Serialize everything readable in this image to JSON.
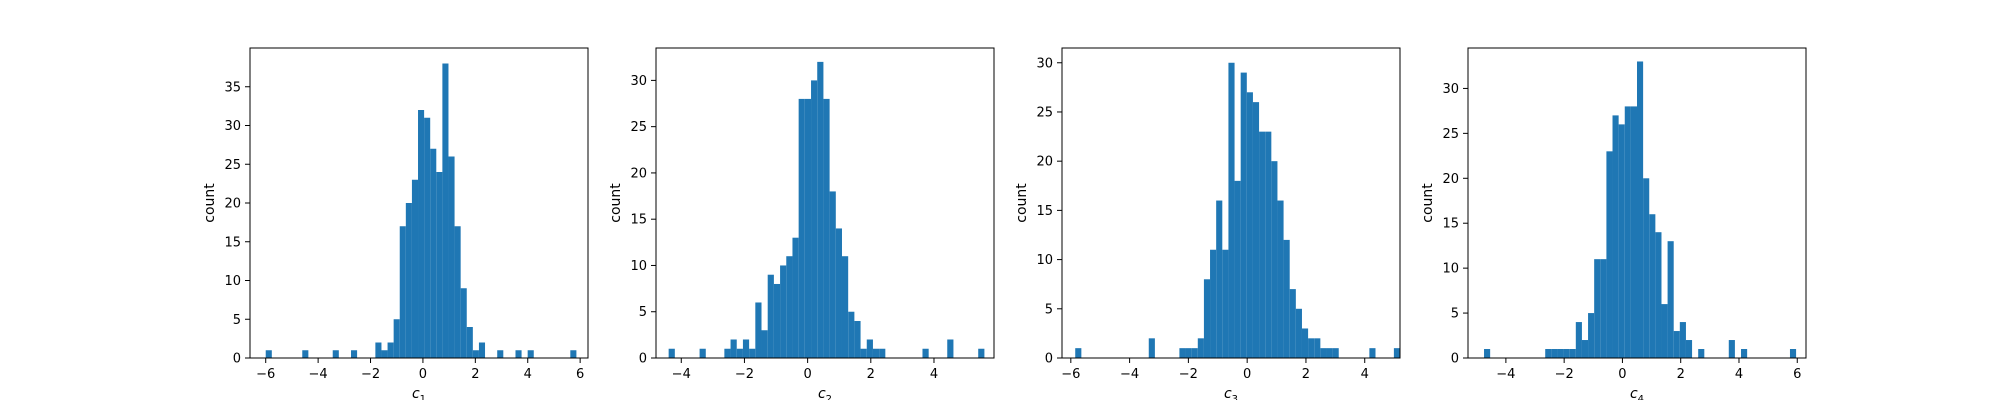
{
  "figure": {
    "bar_color": "#1f77b4",
    "axes_color": "#000000",
    "background": "#ffffff"
  },
  "chart_data": [
    {
      "type": "bar",
      "subtype": "histogram",
      "xlabel": "c",
      "xlabel_sub": "1",
      "ylabel": "count",
      "xlim": [
        -6.6,
        6.3
      ],
      "ylim": [
        0,
        40
      ],
      "xticks": [
        -6,
        -4,
        -2,
        0,
        2,
        4,
        6
      ],
      "xtick_labels": [
        "−6",
        "−4",
        "−2",
        "0",
        "2",
        "4",
        "6"
      ],
      "yticks": [
        0,
        5,
        10,
        15,
        20,
        25,
        30,
        35
      ],
      "ytick_labels": [
        "0",
        "5",
        "10",
        "15",
        "20",
        "25",
        "30",
        "35"
      ],
      "bin_start": -6.0,
      "bin_width": 0.2325,
      "counts": [
        1,
        0,
        0,
        0,
        0,
        0,
        1,
        0,
        0,
        0,
        0,
        1,
        0,
        0,
        1,
        0,
        0,
        0,
        2,
        1,
        2,
        5,
        17,
        20,
        23,
        32,
        31,
        27,
        24,
        38,
        26,
        17,
        9,
        4,
        1,
        2,
        0,
        0,
        1,
        0,
        0,
        1,
        0,
        1,
        0,
        0,
        0,
        0,
        0,
        0,
        1
      ]
    },
    {
      "type": "bar",
      "subtype": "histogram",
      "xlabel": "c",
      "xlabel_sub": "2",
      "ylabel": "count",
      "xlim": [
        -4.8,
        5.9
      ],
      "ylim": [
        0,
        33.5
      ],
      "xticks": [
        -4,
        -2,
        0,
        2,
        4
      ],
      "xtick_labels": [
        "−4",
        "−2",
        "0",
        "2",
        "4"
      ],
      "yticks": [
        0,
        5,
        10,
        15,
        20,
        25,
        30
      ],
      "ytick_labels": [
        "0",
        "5",
        "10",
        "15",
        "20",
        "25",
        "30"
      ],
      "bin_start": -4.4,
      "bin_width": 0.196,
      "counts": [
        1,
        0,
        0,
        0,
        0,
        1,
        0,
        0,
        0,
        1,
        2,
        1,
        2,
        1,
        6,
        3,
        9,
        8,
        10,
        11,
        13,
        28,
        28,
        30,
        32,
        28,
        18,
        14,
        11,
        5,
        4,
        1,
        2,
        1,
        1,
        0,
        0,
        0,
        0,
        0,
        0,
        1,
        0,
        0,
        0,
        2,
        0,
        0,
        0,
        0,
        1
      ]
    },
    {
      "type": "bar",
      "subtype": "histogram",
      "xlabel": "c",
      "xlabel_sub": "3",
      "ylabel": "count",
      "xlim": [
        -6.3,
        5.2
      ],
      "ylim": [
        0,
        31.5
      ],
      "xticks": [
        -6,
        -4,
        -2,
        0,
        2,
        4
      ],
      "xtick_labels": [
        "−6",
        "−4",
        "−2",
        "0",
        "2",
        "4"
      ],
      "yticks": [
        0,
        5,
        10,
        15,
        20,
        25,
        30
      ],
      "ytick_labels": [
        "0",
        "5",
        "10",
        "15",
        "20",
        "25",
        "30"
      ],
      "bin_start": -5.85,
      "bin_width": 0.2085,
      "counts": [
        1,
        0,
        0,
        0,
        0,
        0,
        0,
        0,
        0,
        0,
        0,
        0,
        2,
        0,
        0,
        0,
        0,
        1,
        1,
        1,
        2,
        8,
        11,
        16,
        11,
        30,
        18,
        29,
        27,
        26,
        23,
        23,
        20,
        16,
        12,
        7,
        5,
        3,
        2,
        2,
        1,
        1,
        1,
        0,
        0,
        0,
        0,
        0,
        1,
        0,
        0,
        0,
        1
      ]
    },
    {
      "type": "bar",
      "subtype": "histogram",
      "xlabel": "c",
      "xlabel_sub": "4",
      "ylabel": "count",
      "xlim": [
        -5.3,
        6.3
      ],
      "ylim": [
        0,
        34.5
      ],
      "xticks": [
        -4,
        -2,
        0,
        2,
        4,
        6
      ],
      "xtick_labels": [
        "−4",
        "−2",
        "0",
        "2",
        "4",
        "6"
      ],
      "yticks": [
        0,
        5,
        10,
        15,
        20,
        25,
        30
      ],
      "ytick_labels": [
        "0",
        "5",
        "10",
        "15",
        "20",
        "25",
        "30"
      ],
      "bin_start": -4.75,
      "bin_width": 0.21,
      "counts": [
        1,
        0,
        0,
        0,
        0,
        0,
        0,
        0,
        0,
        0,
        1,
        1,
        1,
        1,
        1,
        4,
        2,
        5,
        11,
        11,
        23,
        27,
        26,
        28,
        28,
        33,
        20,
        16,
        14,
        6,
        13,
        3,
        4,
        2,
        0,
        1,
        0,
        0,
        0,
        0,
        2,
        0,
        1,
        0,
        0,
        0,
        0,
        0,
        0,
        0,
        1
      ]
    }
  ]
}
